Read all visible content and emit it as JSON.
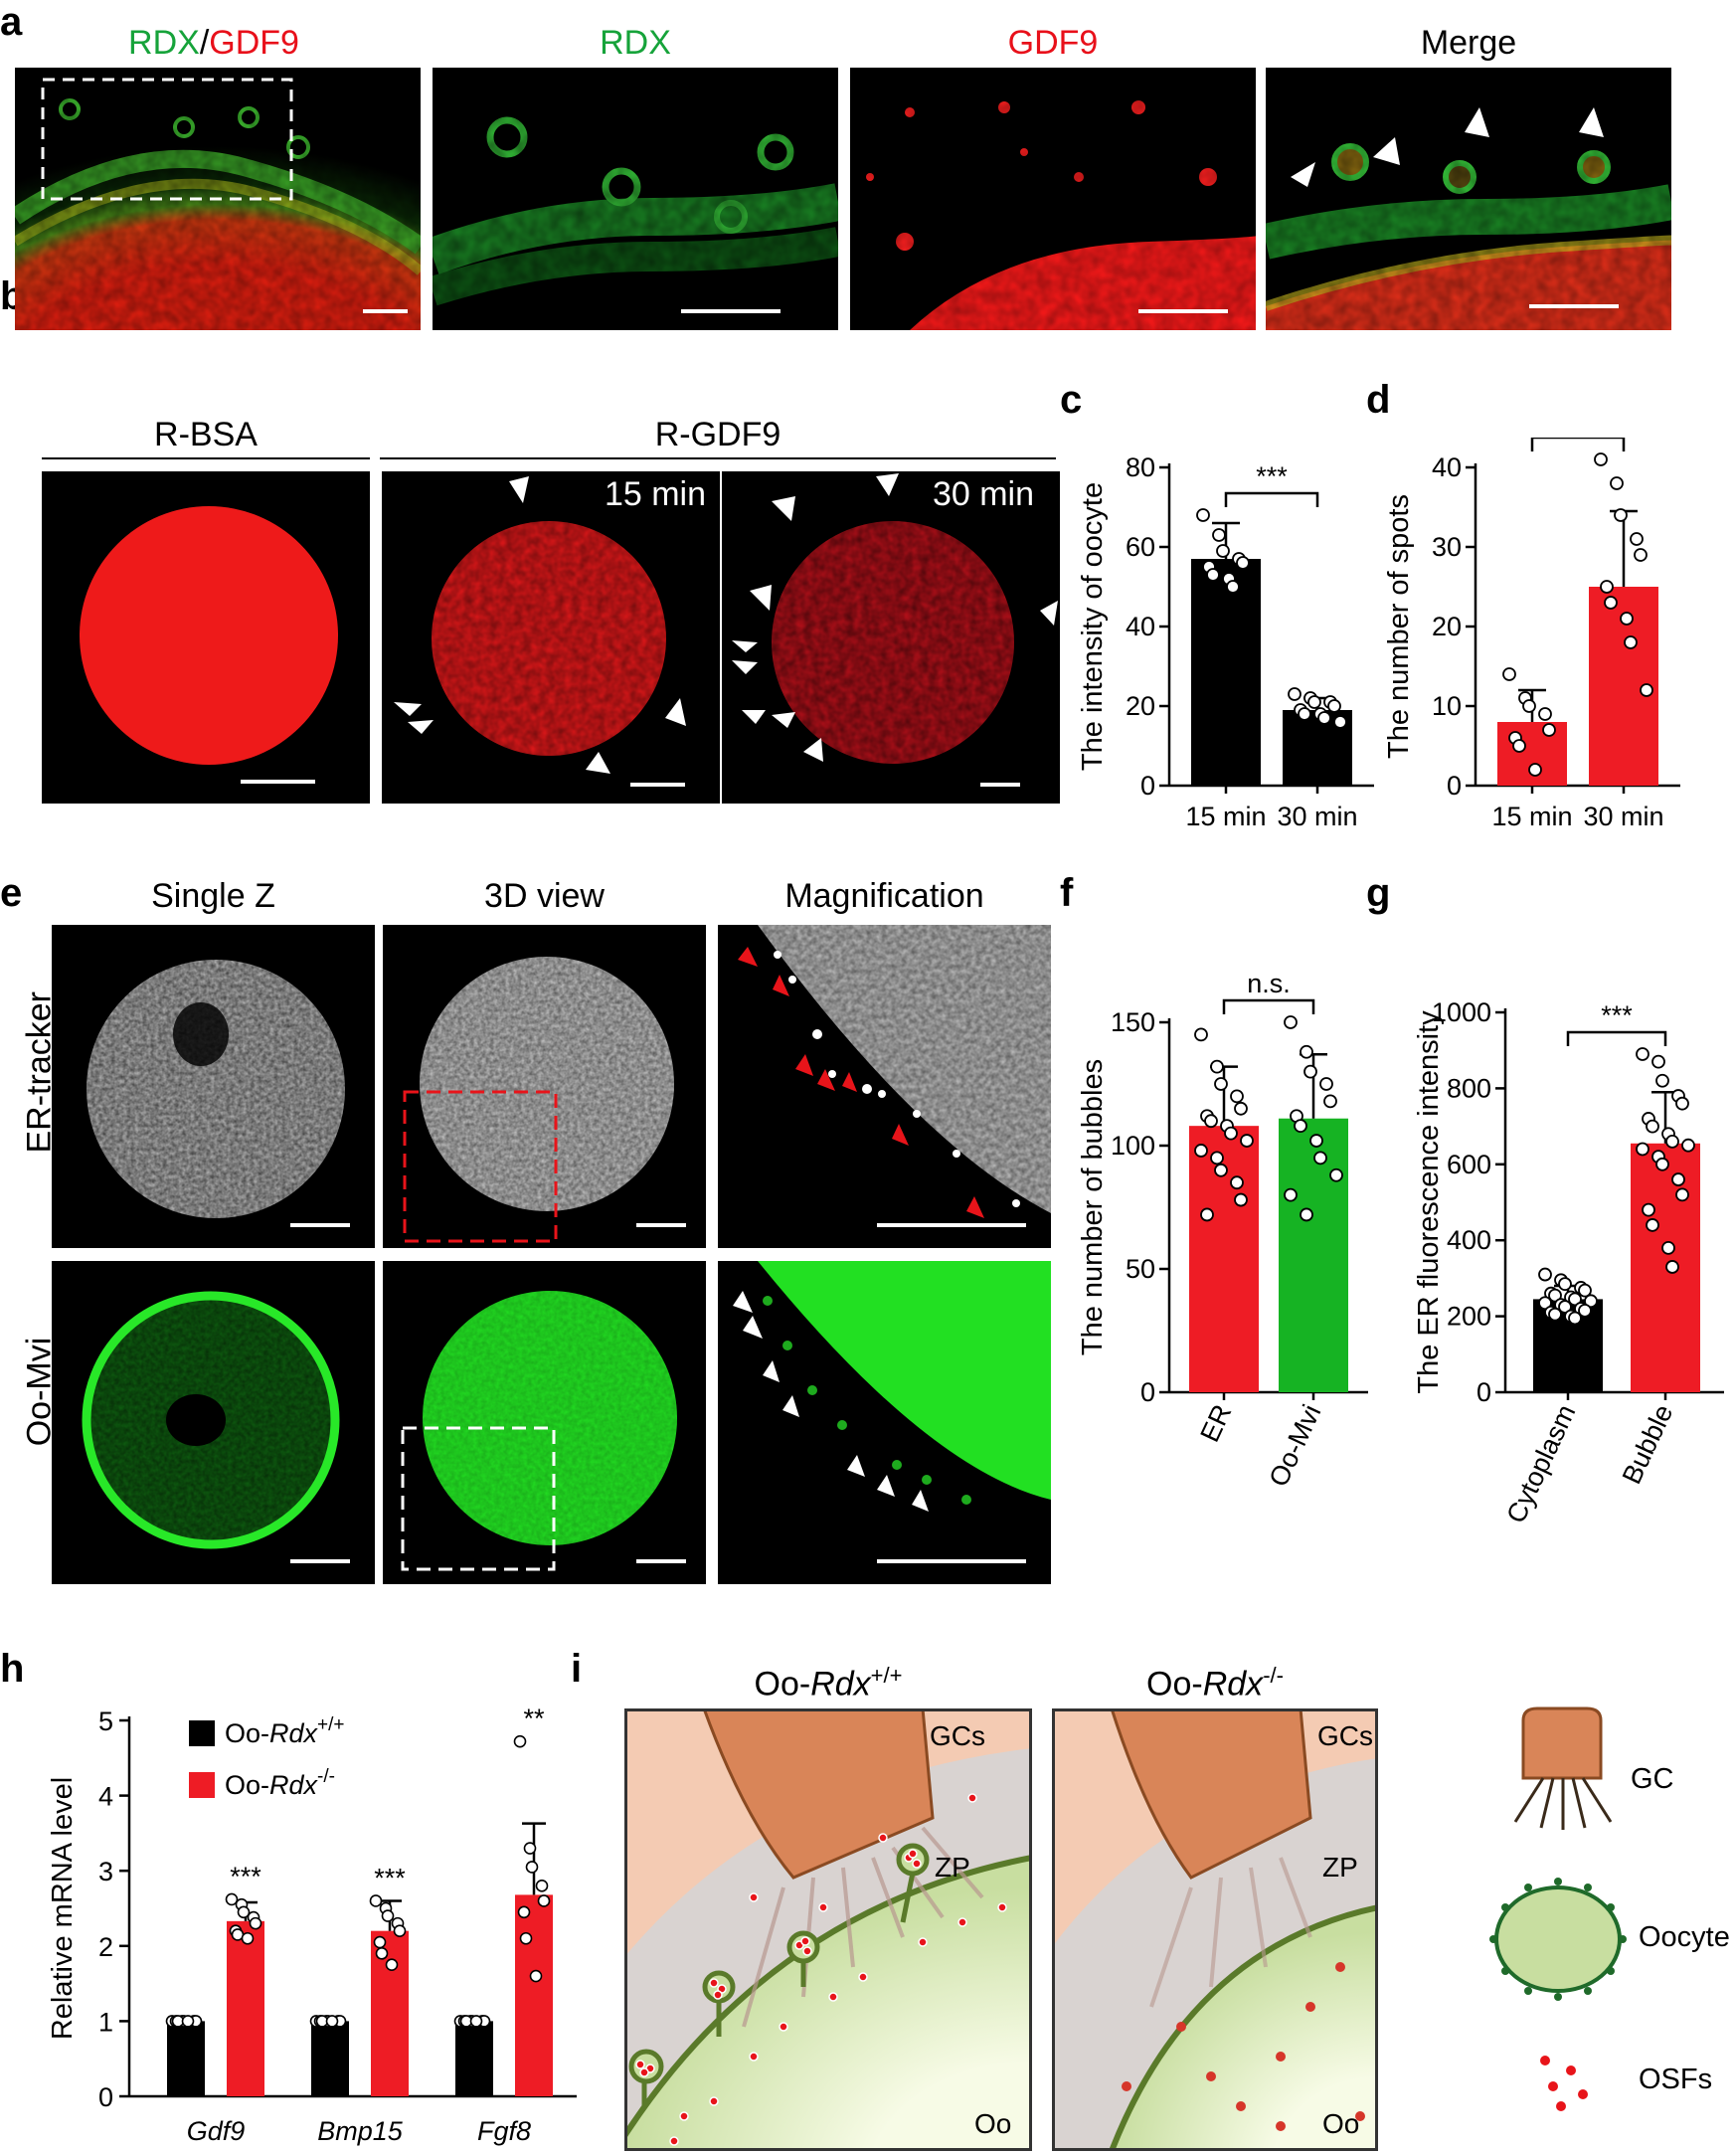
{
  "panel_letters": {
    "a": "a",
    "b": "b",
    "c": "c",
    "d": "d",
    "e": "e",
    "f": "f",
    "g": "g",
    "h": "h",
    "i": "i"
  },
  "panel_a": {
    "title_rdx": "RDX",
    "title_sep": "/",
    "title_gdf9": "GDF9",
    "col2": "RDX",
    "col3": "GDF9",
    "col4": "Merge",
    "colors": {
      "green": "#16a33a",
      "red": "#e8101a"
    }
  },
  "panel_b": {
    "col1": "R-BSA",
    "col2": "R-GDF9",
    "time1": "15 min",
    "time2": "30 min"
  },
  "panel_e": {
    "col1": "Single Z",
    "col2": "3D view",
    "col3": "Magnification",
    "row1": "ER-tracker",
    "row2": "Oo-Mvi"
  },
  "panel_i": {
    "left_title_prefix": "Oo-",
    "left_title_italic": "Rdx",
    "left_title_sup": "+/+",
    "right_title_prefix": "Oo-",
    "right_title_italic": "Rdx",
    "right_title_sup": "-/-",
    "gcs": "GCs",
    "zp": "ZP",
    "oo": "Oo",
    "legend_gc": "GC",
    "legend_oocyte": "Oocyte",
    "legend_osfs": "OSFs"
  },
  "chart_data": [
    {
      "id": "c",
      "type": "bar",
      "categories": [
        "15 min",
        "30 min"
      ],
      "values": [
        57,
        19
      ],
      "errors": [
        9,
        3
      ],
      "points": [
        [
          68,
          63,
          59,
          57,
          56,
          55,
          53,
          52,
          50
        ],
        [
          23,
          22,
          21,
          21,
          20,
          19,
          18,
          18,
          17,
          16
        ]
      ],
      "bar_colors": [
        "#000000",
        "#000000"
      ],
      "ylabel": "The intensity of oocyte",
      "ylim": [
        0,
        80
      ],
      "yticks": [
        0,
        20,
        40,
        60,
        80
      ],
      "significance": "***"
    },
    {
      "id": "d",
      "type": "bar",
      "categories": [
        "15 min",
        "30 min"
      ],
      "values": [
        8,
        25
      ],
      "errors": [
        4,
        9.5
      ],
      "points": [
        [
          14,
          11,
          10,
          9,
          7,
          6,
          5,
          2
        ],
        [
          41,
          38,
          34,
          31,
          29,
          25,
          23,
          21,
          18,
          12
        ]
      ],
      "bar_colors": [
        "#ee1c25",
        "#ee1c25"
      ],
      "ylabel": "The number of spots",
      "ylim": [
        0,
        40
      ],
      "yticks": [
        0,
        10,
        20,
        30,
        40
      ],
      "significance": "***"
    },
    {
      "id": "f",
      "type": "bar",
      "categories": [
        "ER",
        "Oo-Mvi"
      ],
      "values": [
        108,
        111
      ],
      "errors": [
        24,
        26
      ],
      "points": [
        [
          145,
          132,
          125,
          120,
          115,
          112,
          110,
          108,
          105,
          102,
          98,
          95,
          90,
          85,
          78,
          72
        ],
        [
          150,
          138,
          130,
          125,
          118,
          112,
          108,
          102,
          95,
          88,
          80,
          72
        ]
      ],
      "bar_colors": [
        "#ee1c25",
        "#16b323"
      ],
      "ylabel": "The number of bubbles",
      "ylim": [
        0,
        150
      ],
      "yticks": [
        0,
        50,
        100,
        150
      ],
      "significance": "n.s."
    },
    {
      "id": "g",
      "type": "bar",
      "categories": [
        "Cytoplasm",
        "Bubble"
      ],
      "values": [
        245,
        655
      ],
      "errors": [
        35,
        135
      ],
      "points": [
        [
          310,
          295,
          285,
          275,
          268,
          260,
          255,
          250,
          245,
          240,
          235,
          230,
          225,
          220,
          215,
          210,
          205,
          200,
          195
        ],
        [
          890,
          870,
          820,
          780,
          760,
          720,
          700,
          680,
          660,
          650,
          640,
          620,
          600,
          560,
          520,
          480,
          440,
          380,
          330
        ]
      ],
      "bar_colors": [
        "#000000",
        "#ee1c25"
      ],
      "ylabel": "The ER fluorescence intensity",
      "ylim": [
        0,
        1000
      ],
      "yticks": [
        0,
        200,
        400,
        600,
        800,
        1000
      ],
      "significance": "***"
    },
    {
      "id": "h",
      "type": "bar",
      "categories": [
        "Gdf9",
        "Bmp15",
        "Fgf8"
      ],
      "series": [
        {
          "name": "Oo-Rdx+/+",
          "values": [
            1,
            1,
            1
          ],
          "errors": [
            0,
            0,
            0
          ],
          "color": "#000000",
          "points": [
            [
              1,
              1,
              1,
              1,
              1,
              1,
              1,
              1
            ],
            [
              1,
              1,
              1,
              1,
              1,
              1,
              1,
              1
            ],
            [
              1,
              1,
              1,
              1,
              1,
              1,
              1,
              1
            ]
          ]
        },
        {
          "name": "Oo-Rdx-/-",
          "values": [
            2.33,
            2.2,
            2.68
          ],
          "errors": [
            0.25,
            0.4,
            0.95
          ],
          "color": "#ee1c25",
          "points": [
            [
              2.62,
              2.55,
              2.45,
              2.38,
              2.3,
              2.2,
              2.15,
              2.1
            ],
            [
              2.6,
              2.5,
              2.4,
              2.3,
              2.2,
              2.05,
              1.9,
              1.75
            ],
            [
              4.72,
              3.3,
              3.05,
              2.8,
              2.6,
              2.45,
              2.1,
              1.6
            ]
          ]
        }
      ],
      "legend": [
        {
          "prefix": "Oo-",
          "italic": "Rdx",
          "sup": "+/+"
        },
        {
          "prefix": "Oo-",
          "italic": "Rdx",
          "sup": "-/-"
        }
      ],
      "ylabel": "Relative mRNA level",
      "ylim": [
        0,
        5
      ],
      "yticks": [
        0,
        1,
        2,
        3,
        4,
        5
      ],
      "significance": [
        "***",
        "***",
        "**"
      ]
    }
  ]
}
